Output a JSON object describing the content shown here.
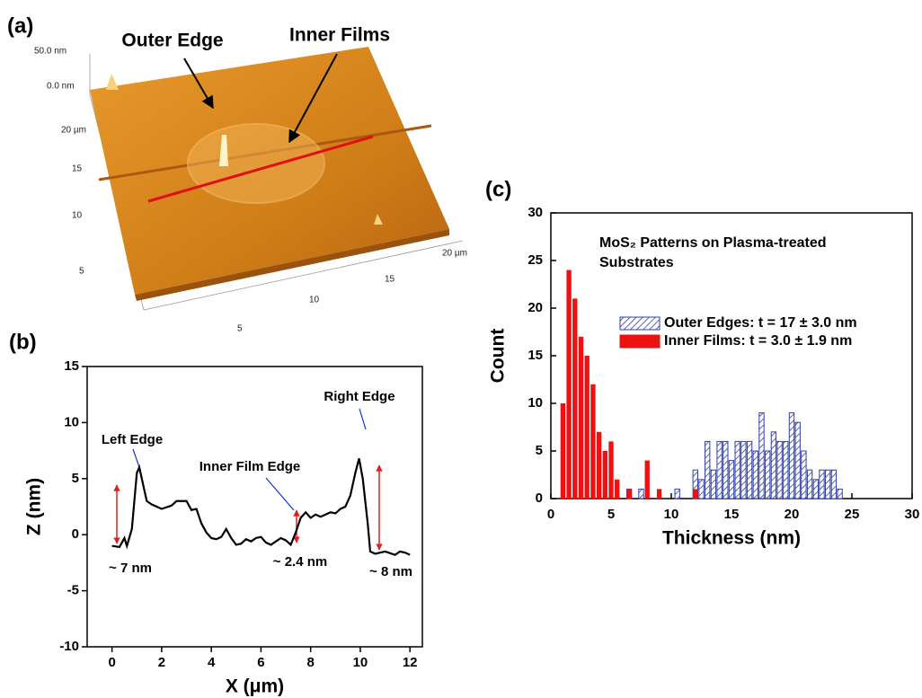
{
  "panel_a": {
    "label": "(a)",
    "callouts": [
      "Outer Edge",
      "Inner Films"
    ],
    "z_labels": [
      "50.0 nm",
      "0.0 nm"
    ],
    "y_labels": [
      "20 µm",
      "15",
      "10",
      "5"
    ],
    "x_labels": [
      "5",
      "10",
      "15",
      "20 µm"
    ]
  },
  "chart_data": [
    {
      "type": "line",
      "label": "(b)",
      "x_label": "X (μm)",
      "y_label": "Z (nm)",
      "x": [
        0,
        0.3,
        0.5,
        0.6,
        0.8,
        0.9,
        1.0,
        1.1,
        1.2,
        1.4,
        1.6,
        1.8,
        2.0,
        2.4,
        2.6,
        3.0,
        3.2,
        3.4,
        3.6,
        3.8,
        4.0,
        4.2,
        4.4,
        4.6,
        4.8,
        5.0,
        5.2,
        5.4,
        5.6,
        5.8,
        6.0,
        6.2,
        6.4,
        6.6,
        6.8,
        7.0,
        7.2,
        7.4,
        7.6,
        7.8,
        8.0,
        8.2,
        8.4,
        8.6,
        8.8,
        9.0,
        9.2,
        9.4,
        9.6,
        9.8,
        9.95,
        10.1,
        10.3,
        10.4,
        10.6,
        10.8,
        11.0,
        11.4,
        11.6,
        11.8,
        12.0
      ],
      "values": [
        -1,
        -1.1,
        -0.3,
        -1,
        0.5,
        3,
        5.5,
        6,
        5,
        3,
        2.7,
        2.5,
        2.3,
        2.6,
        3,
        3,
        2.2,
        2.3,
        1,
        0.2,
        -0.3,
        -0.4,
        -0.2,
        0.5,
        -0.3,
        -0.9,
        -0.8,
        -0.4,
        -0.6,
        -0.3,
        -0.2,
        -0.7,
        -0.9,
        -0.6,
        -0.3,
        -0.5,
        -0.9,
        0.2,
        1.5,
        2,
        1.5,
        1.8,
        1.6,
        1.8,
        2,
        1.9,
        2.3,
        2.5,
        3.5,
        5.5,
        6.8,
        5,
        1,
        -1.5,
        -1.7,
        -1.6,
        -1.5,
        -1.8,
        -1.5,
        -1.6,
        -1.8
      ],
      "color": "#000000",
      "xlim": [
        -1,
        12.5
      ],
      "ylim": [
        -10,
        15
      ],
      "xticks": [
        0,
        2,
        4,
        6,
        8,
        10,
        12
      ],
      "yticks": [
        -10,
        -5,
        0,
        5,
        10,
        15
      ],
      "annotations": [
        "Left Edge",
        "Inner Film Edge",
        "Right Edge",
        "~ 7 nm",
        "~ 2.4 nm",
        "~ 8 nm"
      ]
    },
    {
      "type": "bar",
      "label": "(c)",
      "x_label": "Thickness (nm)",
      "y_label": "Count",
      "annotation": [
        "MoS₂ Patterns on Plasma-treated",
        "Substrates"
      ],
      "series": [
        {
          "name": "Outer Edges: t = 17 ± 3.0 nm",
          "color": "#2f3fa8",
          "hatch": true,
          "x": [
            6.5,
            7.5,
            10.5,
            12.0,
            12.5,
            13.0,
            13.5,
            14.0,
            14.5,
            15.0,
            15.5,
            16.0,
            16.5,
            17.0,
            17.5,
            18.0,
            18.5,
            19.0,
            19.5,
            20.0,
            20.5,
            21.0,
            21.5,
            22.0,
            22.5,
            23.0,
            23.5,
            24.0
          ],
          "values": [
            1,
            1,
            1,
            3,
            2,
            6,
            3,
            6,
            6,
            4,
            6,
            6,
            6,
            5,
            9,
            5,
            7,
            6,
            6,
            9,
            8,
            5,
            3,
            2,
            3,
            3,
            3,
            1
          ]
        },
        {
          "name": "Inner Films: t = 3.0 ± 1.9 nm",
          "color": "#ee1111",
          "hatch": false,
          "x": [
            1.0,
            1.5,
            2.0,
            2.5,
            3.0,
            3.5,
            4.0,
            4.5,
            5.0,
            5.5,
            6.5,
            8.0,
            9.0,
            12.0
          ],
          "values": [
            10,
            24,
            21,
            17,
            15,
            12,
            7,
            5,
            6,
            2,
            1,
            4,
            1,
            1
          ]
        }
      ],
      "xlim": [
        0,
        30
      ],
      "ylim": [
        0,
        30
      ],
      "xticks": [
        0,
        5,
        10,
        15,
        20,
        25,
        30
      ],
      "yticks": [
        0,
        5,
        10,
        15,
        20,
        25,
        30
      ]
    }
  ]
}
